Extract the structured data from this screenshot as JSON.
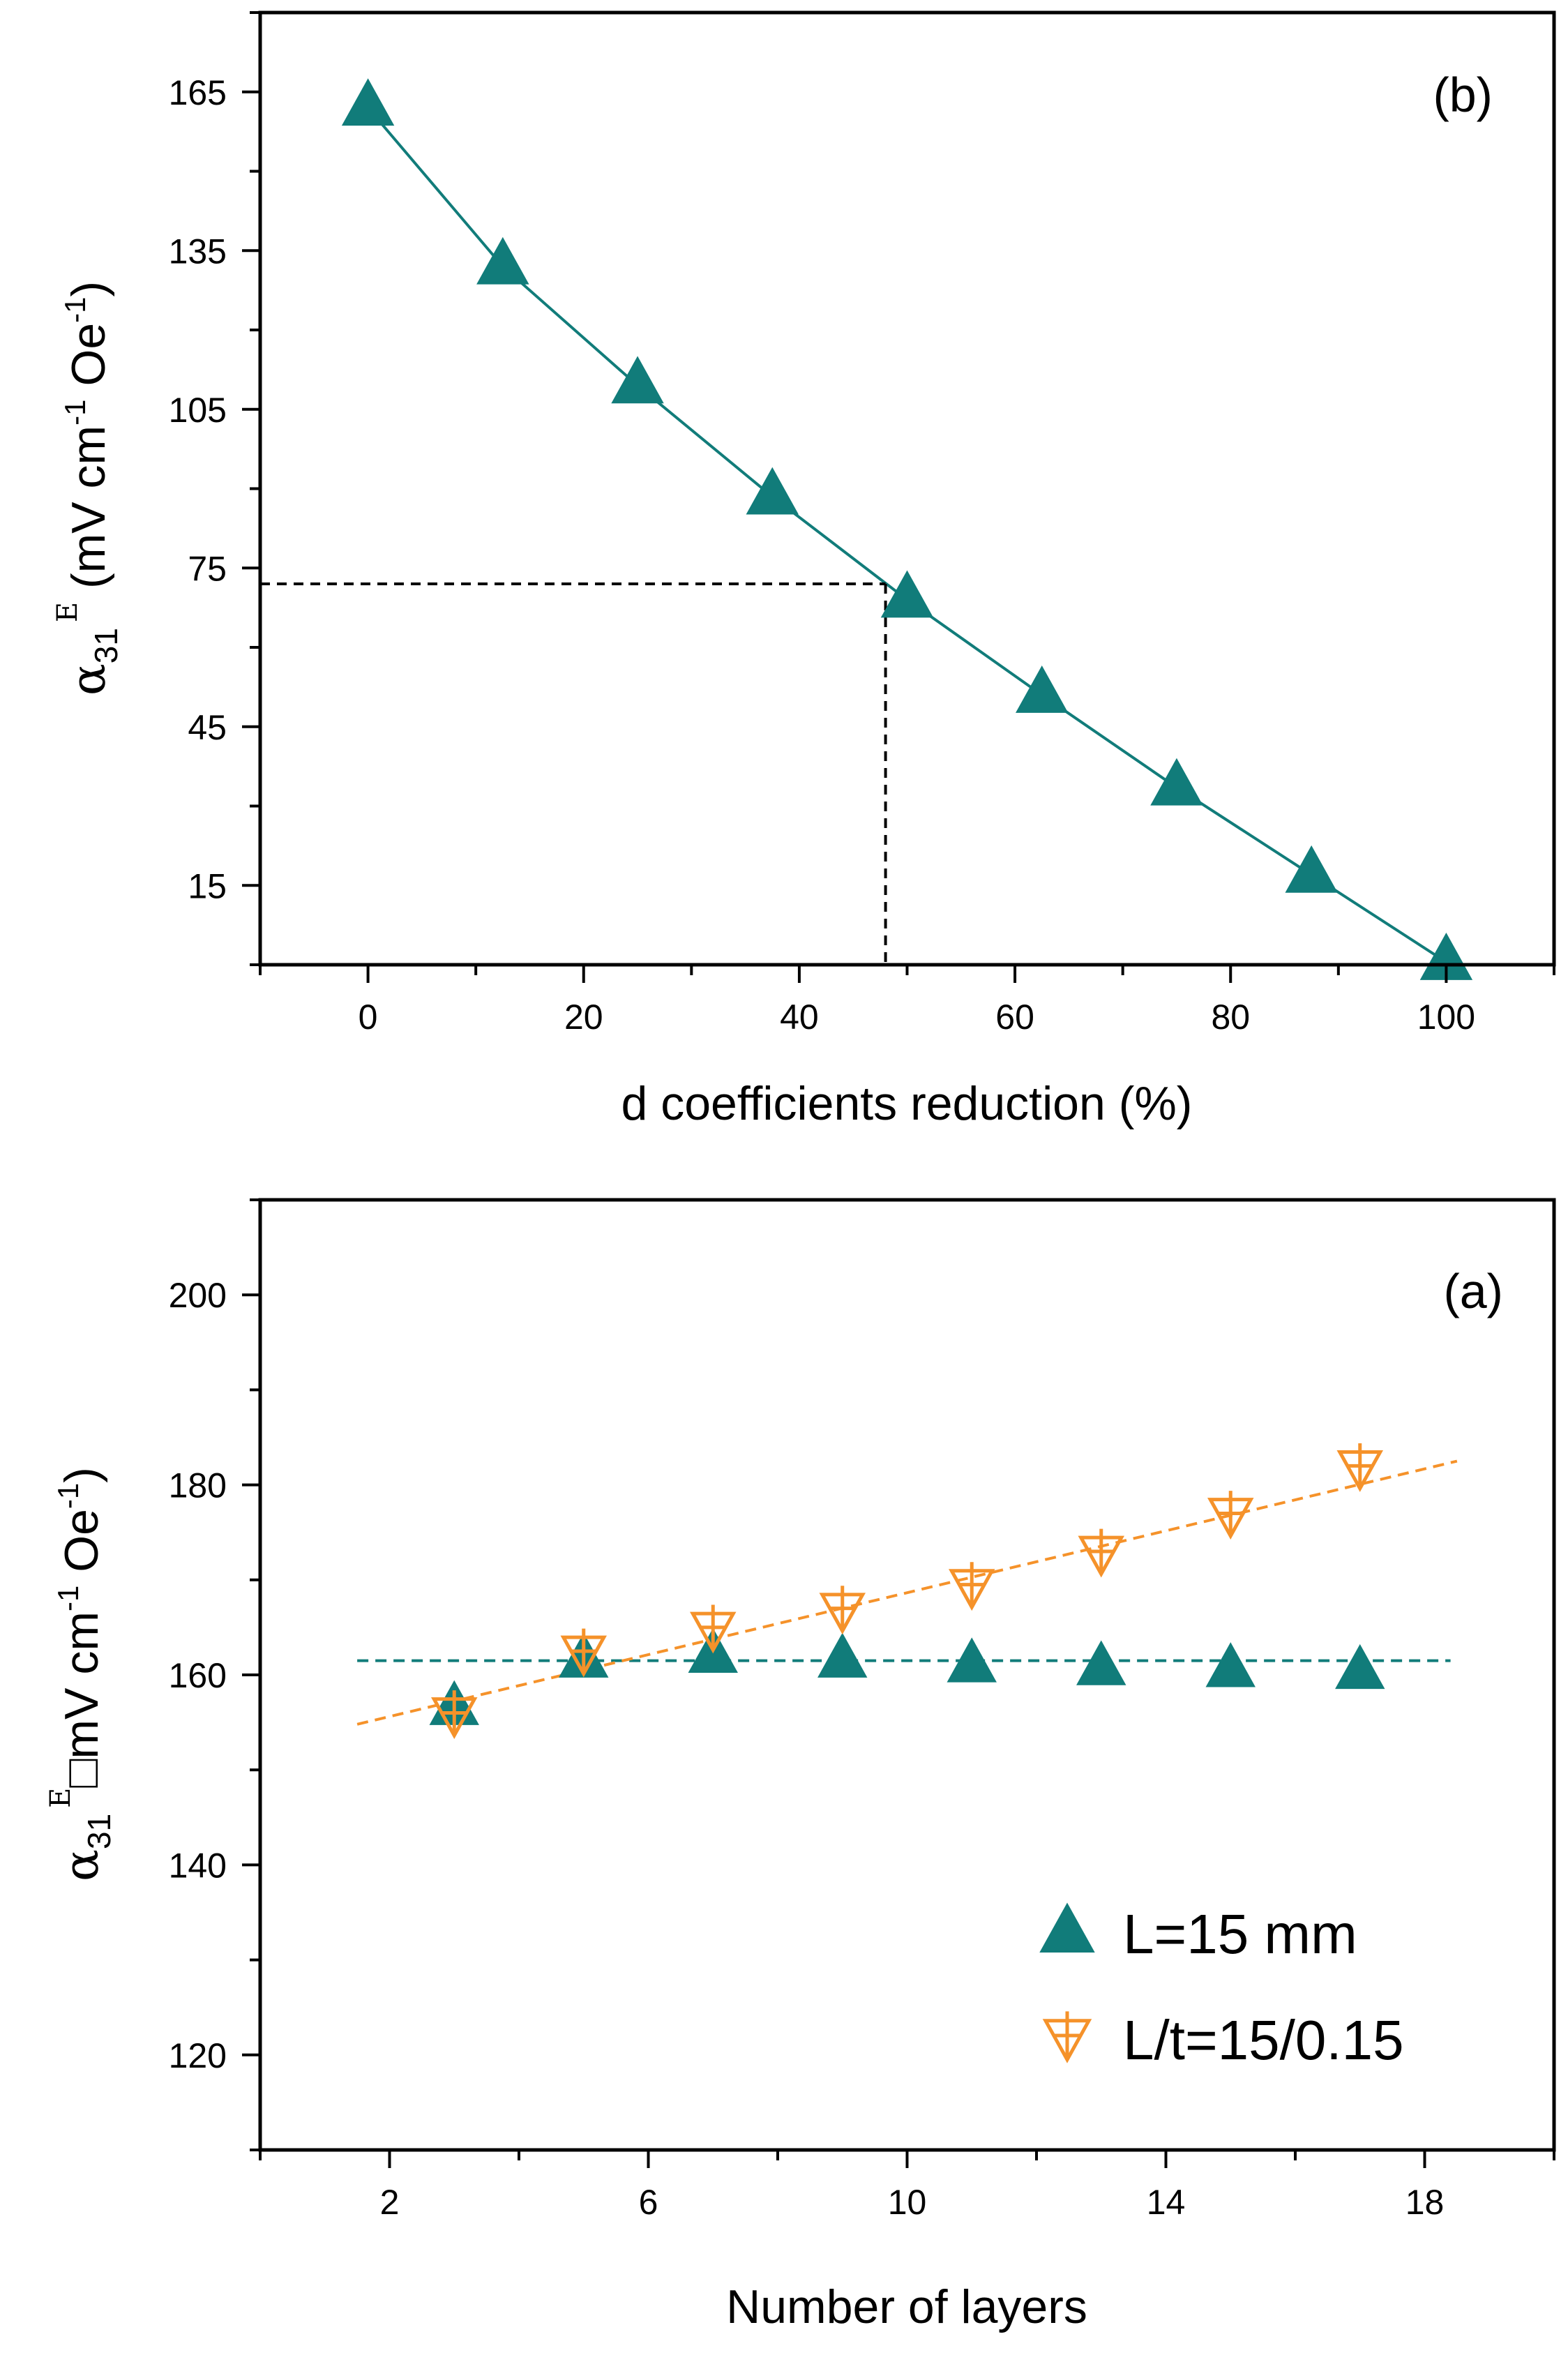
{
  "colors": {
    "series_teal": "#117c7a",
    "series_orange": "#f5922a",
    "frame": "#000000",
    "guide": "#000000"
  },
  "chart_data": [
    {
      "id": "b",
      "type": "line",
      "panel_label": "(b)",
      "xlabel": "d coefficients reduction (%)",
      "ylabel": {
        "symbol": "α",
        "subscript": "31",
        "superscript": "E",
        "units_open": " (mV cm",
        "units_exp1": "-1",
        "units_mid": " Oe",
        "units_exp2": "-1",
        "units_close": ")"
      },
      "xlim": [
        -10,
        110
      ],
      "ylim": [
        0,
        180
      ],
      "xticks": [
        0,
        20,
        40,
        60,
        80,
        100
      ],
      "xtick_labels": [
        "0",
        "20",
        "40",
        "60",
        "80",
        "100"
      ],
      "xminor": [
        -10,
        10,
        30,
        50,
        70,
        90,
        110
      ],
      "yticks": [
        15,
        45,
        75,
        105,
        135,
        165
      ],
      "ytick_labels": [
        "15",
        "45",
        "75",
        "105",
        "135",
        "165"
      ],
      "yminor": [
        0,
        30,
        60,
        90,
        120,
        150,
        180
      ],
      "series": [
        {
          "name": "d coefficients reduction",
          "marker": "triangle-up-filled",
          "color": "#117c7a",
          "x": [
            0,
            12.5,
            25,
            37.5,
            50,
            62.5,
            75,
            87.5,
            100
          ],
          "y": [
            162,
            132,
            109.5,
            88.5,
            69,
            51,
            33.5,
            17,
            0.5
          ]
        }
      ],
      "guides": {
        "x": 48,
        "y": 72
      }
    },
    {
      "id": "a",
      "type": "scatter",
      "panel_label": "(a)",
      "xlabel": "Number of layers",
      "ylabel": {
        "symbol": "α",
        "subscript": "31",
        "superscript": "E",
        "units_open": "□mV cm",
        "units_exp1": "-1",
        "units_mid": " Oe",
        "units_exp2": "-1",
        "units_close": ")"
      },
      "xlim": [
        0,
        20
      ],
      "ylim": [
        110,
        210
      ],
      "xticks": [
        2,
        6,
        10,
        14,
        18
      ],
      "xtick_labels": [
        "2",
        "6",
        "10",
        "14",
        "18"
      ],
      "xminor": [
        0,
        4,
        8,
        12,
        16,
        20
      ],
      "yticks": [
        120,
        140,
        160,
        180,
        200
      ],
      "ytick_labels": [
        "120",
        "140",
        "160",
        "180",
        "200"
      ],
      "yminor": [
        110,
        130,
        150,
        170,
        190,
        210
      ],
      "series": [
        {
          "name": "L=15 mm",
          "marker": "triangle-up-filled",
          "color": "#117c7a",
          "x": [
            3,
            5,
            7,
            9,
            11,
            13,
            15,
            17
          ],
          "y": [
            156.5,
            161.5,
            162,
            161.5,
            161,
            160.7,
            160.5,
            160.3
          ],
          "fit": {
            "x": [
              1.5,
              18.4
            ],
            "y": [
              161.5,
              161.5
            ]
          }
        },
        {
          "name": "L/t=15/0.15",
          "marker": "triangle-down-open-cross",
          "color": "#f5922a",
          "x": [
            3,
            5,
            7,
            9,
            11,
            13,
            15,
            17
          ],
          "y": [
            156,
            162.5,
            165,
            167,
            169.5,
            173,
            177,
            182
          ],
          "fit": {
            "x": [
              1.5,
              18.5
            ],
            "y": [
              154.8,
              182.5
            ]
          }
        }
      ]
    }
  ]
}
